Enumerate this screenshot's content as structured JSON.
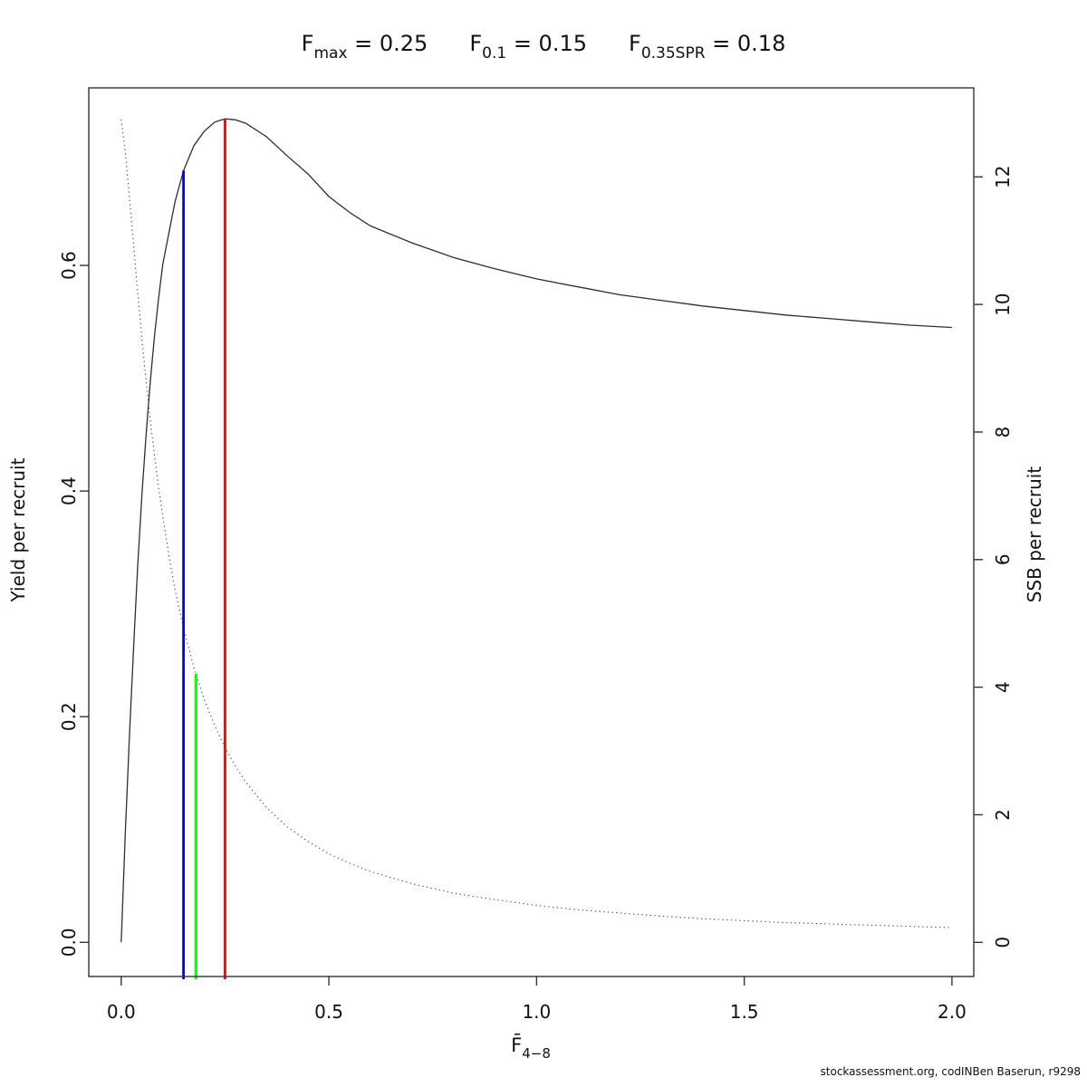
{
  "figure": {
    "background": "#ffffff"
  },
  "title": {
    "parts": [
      {
        "base": "F",
        "sub": "max",
        "eq": " = ",
        "value": "0.25"
      },
      {
        "base": "F",
        "sub": "0.1",
        "eq": " = ",
        "value": "0.15"
      },
      {
        "base": "F",
        "sub": "0.35SPR",
        "eq": " = ",
        "value": "0.18"
      }
    ]
  },
  "footer": "stockassessment.org, codINBen Baserun, r9298",
  "chart_data": {
    "type": "line",
    "title": "Fmax = 0.25   F0.1 = 0.15   F0.35SPR = 0.18",
    "xlabel_base": "F̄",
    "xlabel_sub": "4−8",
    "ylabel_left": "Yield per recruit",
    "ylabel_right": "SSB per recruit",
    "xlim": [
      0,
      2
    ],
    "ylim_left": [
      0,
      0.757
    ],
    "ylim_right": [
      0,
      13.4
    ],
    "grid": false,
    "legend": "none",
    "x_ticks": {
      "values": [
        0,
        0.5,
        1,
        1.5,
        2
      ],
      "labels": [
        "0.0",
        "0.5",
        "1.0",
        "1.5",
        "2.0"
      ]
    },
    "yleft_ticks": {
      "values": [
        0,
        0.2,
        0.4,
        0.6
      ],
      "labels": [
        "0.0",
        "0.2",
        "0.4",
        "0.6"
      ]
    },
    "yright_ticks": {
      "values": [
        0,
        2,
        4,
        6,
        8,
        10,
        12
      ],
      "labels": [
        "0",
        "2",
        "4",
        "6",
        "8",
        "10",
        "12"
      ]
    },
    "series": [
      {
        "name": "Yield per recruit",
        "axis": "left",
        "line_style": "solid",
        "color": "#2e2e2e",
        "x": [
          0,
          0.01,
          0.02,
          0.03,
          0.04,
          0.05,
          0.06,
          0.07,
          0.08,
          0.09,
          0.1,
          0.115,
          0.13,
          0.15,
          0.175,
          0.2,
          0.225,
          0.25,
          0.275,
          0.3,
          0.35,
          0.4,
          0.45,
          0.5,
          0.55,
          0.6,
          0.7,
          0.8,
          0.9,
          1.0,
          1.1,
          1.2,
          1.3,
          1.4,
          1.5,
          1.6,
          1.7,
          1.8,
          1.9,
          2.0
        ],
        "y": [
          0,
          0.098,
          0.185,
          0.263,
          0.335,
          0.397,
          0.45,
          0.497,
          0.537,
          0.571,
          0.601,
          0.629,
          0.657,
          0.684,
          0.706,
          0.719,
          0.727,
          0.73,
          0.729,
          0.726,
          0.714,
          0.697,
          0.681,
          0.661,
          0.647,
          0.635,
          0.62,
          0.607,
          0.597,
          0.588,
          0.581,
          0.574,
          0.569,
          0.564,
          0.56,
          0.556,
          0.553,
          0.55,
          0.547,
          0.545
        ]
      },
      {
        "name": "SSB per recruit",
        "axis": "right",
        "line_style": "dotted",
        "color": "#454545",
        "x": [
          0,
          0.01,
          0.02,
          0.03,
          0.04,
          0.05,
          0.06,
          0.07,
          0.08,
          0.09,
          0.1,
          0.115,
          0.13,
          0.15,
          0.175,
          0.2,
          0.225,
          0.25,
          0.275,
          0.3,
          0.35,
          0.4,
          0.45,
          0.5,
          0.55,
          0.6,
          0.7,
          0.8,
          0.9,
          1.0,
          1.1,
          1.2,
          1.3,
          1.4,
          1.5,
          1.6,
          1.7,
          1.8,
          1.9,
          2.0
        ],
        "y": [
          12.9,
          12.39,
          11.67,
          10.91,
          10.17,
          9.46,
          8.8,
          8.19,
          7.64,
          7.13,
          6.68,
          6.06,
          5.52,
          4.93,
          4.31,
          3.81,
          3.4,
          3.05,
          2.76,
          2.51,
          2.11,
          1.81,
          1.58,
          1.39,
          1.24,
          1.11,
          0.92,
          0.77,
          0.67,
          0.58,
          0.51,
          0.46,
          0.41,
          0.37,
          0.34,
          0.31,
          0.29,
          0.27,
          0.25,
          0.23
        ]
      }
    ],
    "reference_lines": [
      {
        "name": "F0.1",
        "x": 0.15,
        "color": "#0000ff",
        "touches": "Yield per recruit"
      },
      {
        "name": "F0.35SPR",
        "x": 0.18,
        "color": "#00ff00",
        "touches": "SSB per recruit"
      },
      {
        "name": "Fmax",
        "x": 0.25,
        "color": "#ff0000",
        "touches": "Yield per recruit"
      }
    ],
    "estimates": {
      "Fmax": 0.25,
      "F0.1": 0.15,
      "F0.35SPR": 0.18
    }
  }
}
